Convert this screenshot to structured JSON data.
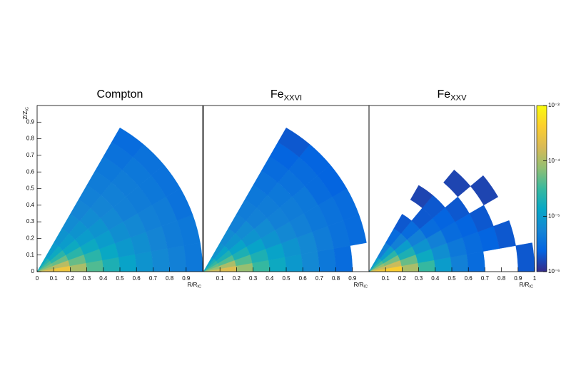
{
  "chart_data": [
    {
      "type": "polar-heatmap",
      "title": {
        "text": "Compton"
      },
      "x_label": {
        "text": "R/R",
        "sub": "IC"
      },
      "y_label": {
        "text": "Z/Z",
        "sub": "IC"
      },
      "xlim": [
        0,
        1
      ],
      "ylim": [
        0,
        1
      ],
      "xticks": [
        0,
        0.1,
        0.2,
        0.3,
        0.4,
        0.5,
        0.6,
        0.7,
        0.8,
        0.9
      ],
      "yticks": [
        0,
        0.1,
        0.2,
        0.3,
        0.4,
        0.5,
        0.6,
        0.7,
        0.8,
        0.9
      ],
      "r_bins": [
        0,
        0.1,
        0.2,
        0.3,
        0.4,
        0.5,
        0.6,
        0.7,
        0.8,
        0.9,
        1
      ],
      "angle_bins": [
        0,
        10,
        20,
        30,
        40,
        50,
        60
      ],
      "values": [
        [
          0.0002,
          0.0003,
          0.0001,
          4e-05,
          2e-05,
          1.2e-05,
          8e-06,
          6e-06,
          5e-06,
          4e-06
        ],
        [
          0.0001,
          0.00012,
          5e-05,
          2.5e-05,
          1.4e-05,
          9e-06,
          7e-06,
          5.5e-06,
          4.5e-06,
          4e-06
        ],
        [
          6e-05,
          5e-05,
          2.5e-05,
          1.5e-05,
          1e-05,
          7e-06,
          6e-06,
          5e-06,
          4.5e-06,
          3.5e-06
        ],
        [
          4e-05,
          2.5e-05,
          1.5e-05,
          1e-05,
          8e-06,
          6e-06,
          5e-06,
          4.5e-06,
          4e-06,
          3.5e-06
        ],
        [
          2.5e-05,
          1.5e-05,
          1e-05,
          8e-06,
          6.5e-06,
          5.5e-06,
          5e-06,
          4.5e-06,
          4e-06,
          3.5e-06
        ],
        [
          1.5e-05,
          1e-05,
          8e-06,
          6.5e-06,
          5.5e-06,
          5e-06,
          4.5e-06,
          4e-06,
          3.5e-06,
          3e-06
        ]
      ]
    },
    {
      "type": "polar-heatmap",
      "title": {
        "text": "Fe",
        "sub": "XXVI"
      },
      "x_label": {
        "text": "R/R",
        "sub": "IC"
      },
      "xlim": [
        0,
        1
      ],
      "ylim": [
        0,
        1
      ],
      "xticks": [
        0.1,
        0.2,
        0.3,
        0.4,
        0.5,
        0.6,
        0.7,
        0.8,
        0.9
      ],
      "r_bins": [
        0,
        0.1,
        0.2,
        0.3,
        0.4,
        0.5,
        0.6,
        0.7,
        0.8,
        0.9,
        1
      ],
      "angle_bins": [
        0,
        10,
        20,
        30,
        40,
        50,
        60
      ],
      "values": [
        [
          0.00015,
          0.0002,
          8e-05,
          3e-05,
          1.5e-05,
          9e-06,
          6e-06,
          4e-06,
          3e-06,
          null
        ],
        [
          8e-05,
          0.0001,
          4e-05,
          2e-05,
          1.2e-05,
          8e-06,
          6e-06,
          4.5e-06,
          3.5e-06,
          3e-06
        ],
        [
          5e-05,
          4e-05,
          2e-05,
          1.2e-05,
          8e-06,
          6e-06,
          5e-06,
          4e-06,
          3.5e-06,
          3e-06
        ],
        [
          3e-05,
          2e-05,
          1.2e-05,
          8e-06,
          6.5e-06,
          5e-06,
          4.5e-06,
          4e-06,
          3e-06,
          2.5e-06
        ],
        [
          2e-05,
          1.2e-05,
          8e-06,
          6.5e-06,
          5e-06,
          4.5e-06,
          4e-06,
          3.5e-06,
          3e-06,
          2.5e-06
        ],
        [
          1.2e-05,
          8e-06,
          6.5e-06,
          5e-06,
          4.5e-06,
          4e-06,
          3.5e-06,
          3e-06,
          2.5e-06,
          2e-06
        ]
      ]
    },
    {
      "type": "polar-heatmap",
      "title": {
        "text": "Fe",
        "sub": "XXV"
      },
      "x_label": {
        "text": "R/R",
        "sub": "IC"
      },
      "xlim": [
        0,
        1
      ],
      "ylim": [
        0,
        1
      ],
      "xticks": [
        0.1,
        0.2,
        0.3,
        0.4,
        0.5,
        0.6,
        0.7,
        0.8,
        0.9,
        1
      ],
      "r_bins": [
        0,
        0.1,
        0.2,
        0.3,
        0.4,
        0.5,
        0.6,
        0.7,
        0.8,
        0.9,
        1
      ],
      "angle_bins": [
        0,
        10,
        20,
        30,
        40,
        50,
        60
      ],
      "values": [
        [
          0.0003,
          0.0004,
          0.0001,
          3e-05,
          1e-05,
          5e-06,
          3e-06,
          null,
          null,
          2e-06
        ],
        [
          0.00015,
          0.00015,
          5e-05,
          1.5e-05,
          7e-06,
          4e-06,
          3e-06,
          2.5e-06,
          2e-06,
          null
        ],
        [
          8e-05,
          6e-05,
          2e-05,
          8e-06,
          5e-06,
          3e-06,
          2.5e-06,
          2e-06,
          null,
          null
        ],
        [
          4e-05,
          2.5e-05,
          1e-05,
          5e-06,
          3e-06,
          2.5e-06,
          2e-06,
          null,
          1.5e-06,
          null
        ],
        [
          2e-05,
          1e-05,
          5e-06,
          3e-06,
          2e-06,
          2e-06,
          null,
          1.5e-06,
          null,
          null
        ],
        [
          1e-05,
          5e-06,
          3e-06,
          2e-06,
          null,
          1.5e-06,
          null,
          null,
          null,
          null
        ]
      ],
      "log_z": true,
      "zlim": [
        1e-06,
        0.001
      ],
      "zticks": [
        {
          "value": 1e-06,
          "label": "10⁻⁶"
        },
        {
          "value": 1e-05,
          "label": "10⁻⁵"
        },
        {
          "value": 0.0001,
          "label": "10⁻⁴"
        },
        {
          "value": 0.001,
          "label": "10⁻³"
        }
      ]
    }
  ]
}
